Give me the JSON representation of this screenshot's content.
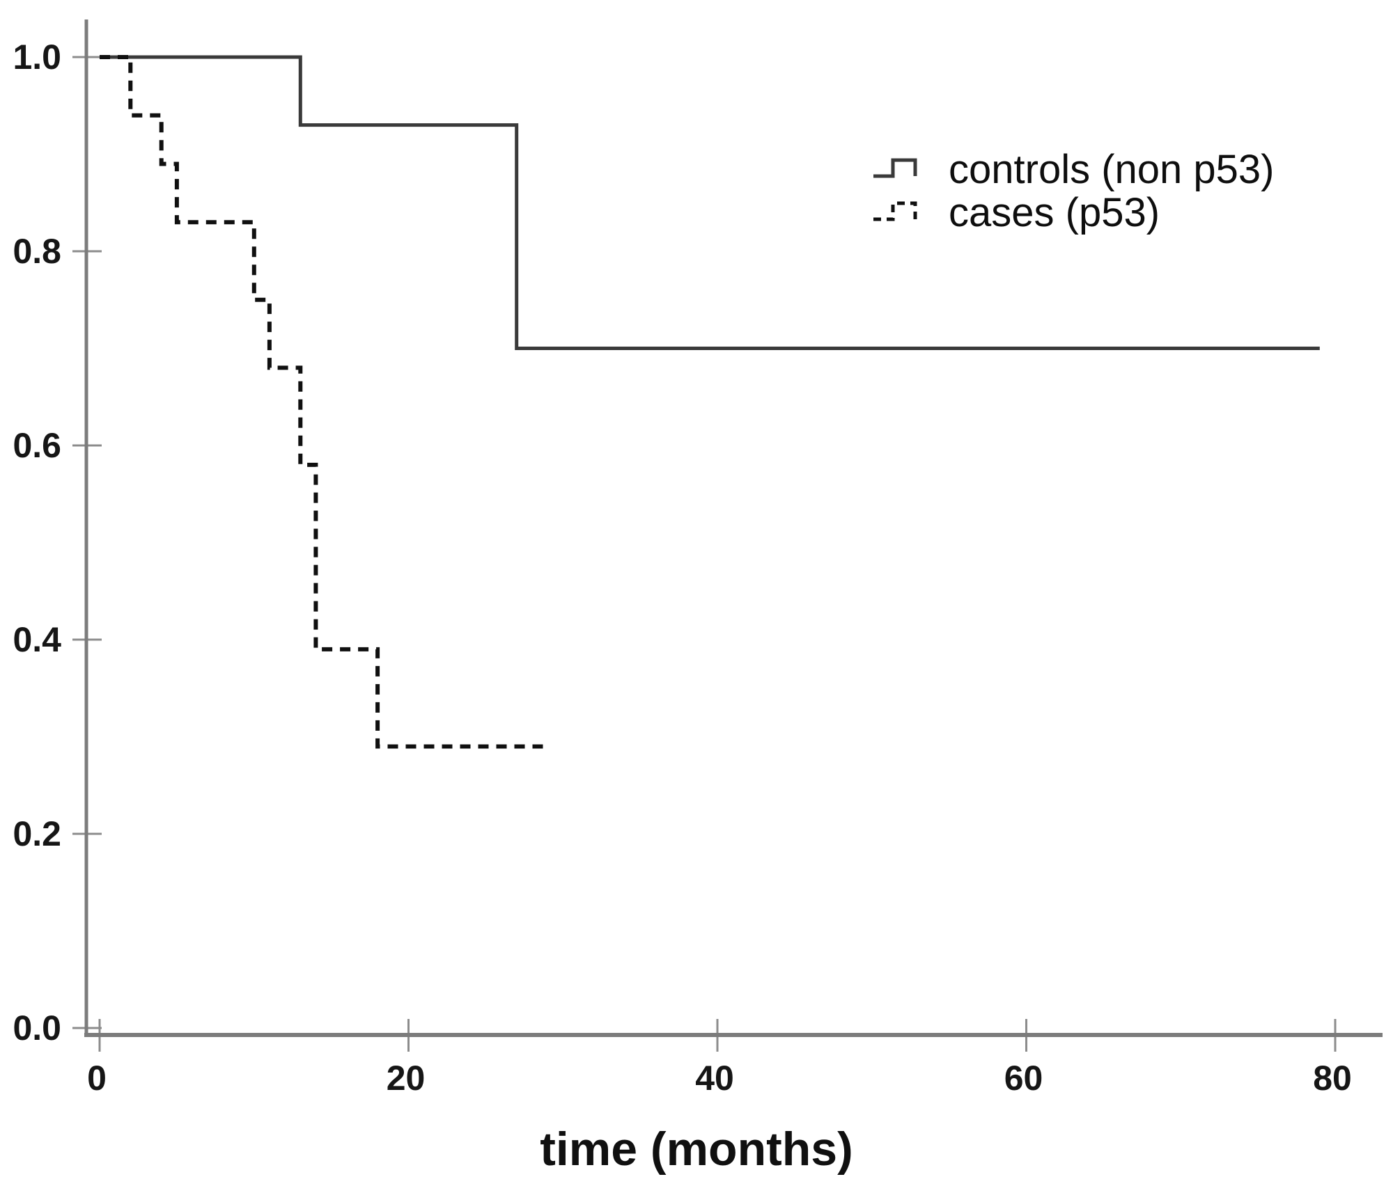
{
  "figure": {
    "background_color": "#ffffff",
    "axis_color": "#7c7c7c",
    "tick_color": "#8c8c8c",
    "tick_label_color": "#161616",
    "xlabel": "time (months)"
  },
  "axes": {
    "x_tick_labels": [
      "0",
      "20",
      "40",
      "60",
      "80"
    ],
    "y_tick_labels": [
      "0.0",
      "0.2",
      "0.4",
      "0.6",
      "0.8",
      "1.0"
    ]
  },
  "legend": {
    "items": [
      {
        "label": "controls (non p53)",
        "line_style": "solid",
        "color": "#3a3a3a"
      },
      {
        "label": "cases (p53)",
        "line_style": "dashed",
        "color": "#101010"
      }
    ]
  },
  "chart_data": {
    "type": "line",
    "subtype": "kaplan_meier_step",
    "title": "",
    "xlabel": "time (months)",
    "ylabel": "",
    "xlim": [
      0,
      80
    ],
    "ylim": [
      0.0,
      1.0
    ],
    "x_ticks": [
      0,
      20,
      40,
      60,
      80
    ],
    "y_ticks": [
      0.0,
      0.2,
      0.4,
      0.6,
      0.8,
      1.0
    ],
    "grid": false,
    "legend_position": "upper-right-inside",
    "series": [
      {
        "name": "controls (non p53)",
        "line_style": "solid",
        "color": "#3a3a3a",
        "step_points": [
          [
            0,
            1.0
          ],
          [
            13,
            1.0
          ],
          [
            13,
            0.93
          ],
          [
            27,
            0.93
          ],
          [
            27,
            0.7
          ],
          [
            79,
            0.7
          ]
        ]
      },
      {
        "name": "cases (p53)",
        "line_style": "dashed",
        "color": "#101010",
        "step_points": [
          [
            0,
            1.0
          ],
          [
            2,
            1.0
          ],
          [
            2,
            0.94
          ],
          [
            4,
            0.94
          ],
          [
            4,
            0.89
          ],
          [
            5,
            0.89
          ],
          [
            5,
            0.83
          ],
          [
            10,
            0.83
          ],
          [
            10,
            0.75
          ],
          [
            11,
            0.75
          ],
          [
            11,
            0.68
          ],
          [
            13,
            0.68
          ],
          [
            13,
            0.58
          ],
          [
            14,
            0.58
          ],
          [
            14,
            0.39
          ],
          [
            18,
            0.39
          ],
          [
            18,
            0.29
          ],
          [
            29,
            0.29
          ]
        ]
      }
    ]
  }
}
